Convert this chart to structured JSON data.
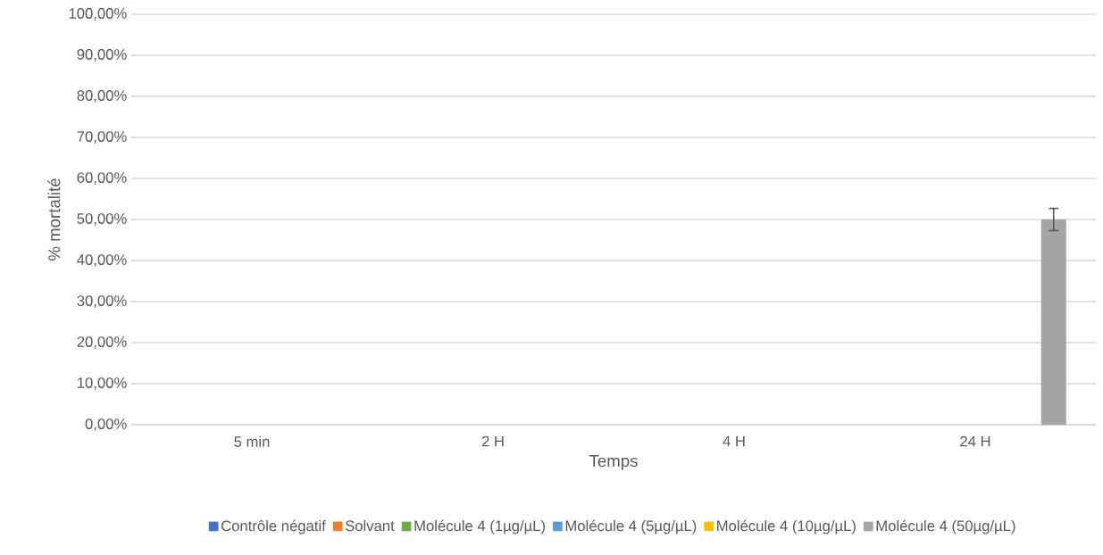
{
  "chart_data": {
    "type": "bar",
    "xlabel": "Temps",
    "ylabel": "% mortalité",
    "categories": [
      "5 min",
      "2 H",
      "4 H",
      "24 H"
    ],
    "series": [
      {
        "name": "Contrôle négatif",
        "color": "#4472c4",
        "values": [
          0,
          0,
          0,
          0
        ]
      },
      {
        "name": "Solvant",
        "color": "#ed7d31",
        "values": [
          0,
          0,
          0,
          0
        ]
      },
      {
        "name": "Molécule 4 (1µg/µL)",
        "color": "#70ad47",
        "values": [
          0,
          0,
          0,
          0
        ]
      },
      {
        "name": "Molécule 4 (5µg/µL)",
        "color": "#5b9bd5",
        "values": [
          0,
          0,
          0,
          0
        ]
      },
      {
        "name": "Molécule 4 (10µg/µL)",
        "color": "#ffc000",
        "values": [
          0,
          0,
          0,
          0
        ]
      },
      {
        "name": "Molécule 4 (50µg/µL)",
        "color": "#a5a5a5",
        "values": [
          0,
          0,
          0,
          50
        ],
        "errors": [
          null,
          null,
          null,
          2.7
        ]
      }
    ],
    "ylim": [
      0,
      100
    ],
    "yticks": [
      {
        "value": 0,
        "label": "0,00%"
      },
      {
        "value": 10,
        "label": "10,00%"
      },
      {
        "value": 20,
        "label": "20,00%"
      },
      {
        "value": 30,
        "label": "30,00%"
      },
      {
        "value": 40,
        "label": "40,00%"
      },
      {
        "value": 50,
        "label": "50,00%"
      },
      {
        "value": 60,
        "label": "60,00%"
      },
      {
        "value": 70,
        "label": "70,00%"
      },
      {
        "value": 80,
        "label": "80,00%"
      },
      {
        "value": 90,
        "label": "90,00%"
      },
      {
        "value": 100,
        "label": "100,00%"
      }
    ],
    "grid": "y",
    "legend": "bottom"
  }
}
